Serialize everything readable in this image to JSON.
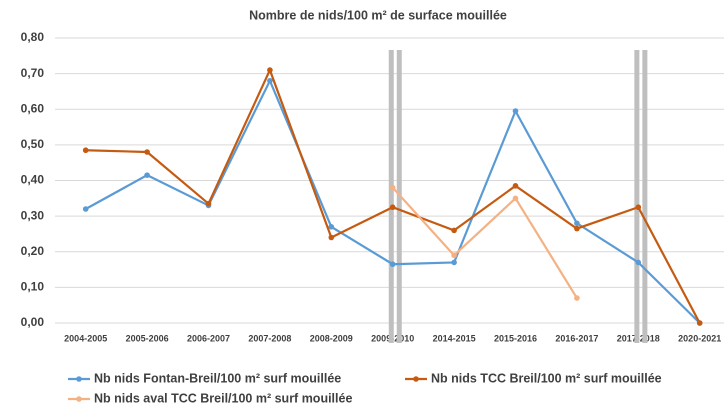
{
  "chart_data": {
    "type": "line",
    "title": "Nombre de nids/100 m² de surface mouillée",
    "categories": [
      "2004-2005",
      "2005-2006",
      "2006-2007",
      "2007-2008",
      "2008-2009",
      "2009-2010",
      "2014-2015",
      "2015-2016",
      "2016-2017",
      "2017-2018",
      "2020-2021"
    ],
    "series": [
      {
        "name": "Nb nids Fontan-Breil/100 m² surf mouillée",
        "color": "#5b9bd5",
        "values": [
          0.32,
          0.415,
          0.33,
          0.68,
          0.27,
          0.165,
          0.17,
          0.595,
          0.28,
          0.17,
          0.0
        ]
      },
      {
        "name": "Nb nids TCC Breil/100 m² surf mouillée",
        "color": "#c55a11",
        "values": [
          0.485,
          0.48,
          0.335,
          0.71,
          0.24,
          0.325,
          0.26,
          0.385,
          0.265,
          0.325,
          0.0
        ]
      },
      {
        "name": "Nb nids aval TCC Breil/100 m² surf mouillée",
        "color": "#f4b183",
        "values": [
          null,
          null,
          null,
          null,
          null,
          0.38,
          0.19,
          0.35,
          0.07,
          null,
          null
        ]
      }
    ],
    "ylim": [
      0,
      0.8
    ],
    "yticks": [
      {
        "value": 0,
        "label": "0,00"
      },
      {
        "value": 0.1,
        "label": "0,10"
      },
      {
        "value": 0.2,
        "label": "0,20"
      },
      {
        "value": 0.3,
        "label": "0,30"
      },
      {
        "value": 0.4,
        "label": "0,40"
      },
      {
        "value": 0.5,
        "label": "0,50"
      },
      {
        "value": 0.6,
        "label": "0,60"
      },
      {
        "value": 0.7,
        "label": "0,70"
      },
      {
        "value": 0.8,
        "label": "0,80"
      }
    ],
    "grid": true,
    "legend": "bottom"
  }
}
